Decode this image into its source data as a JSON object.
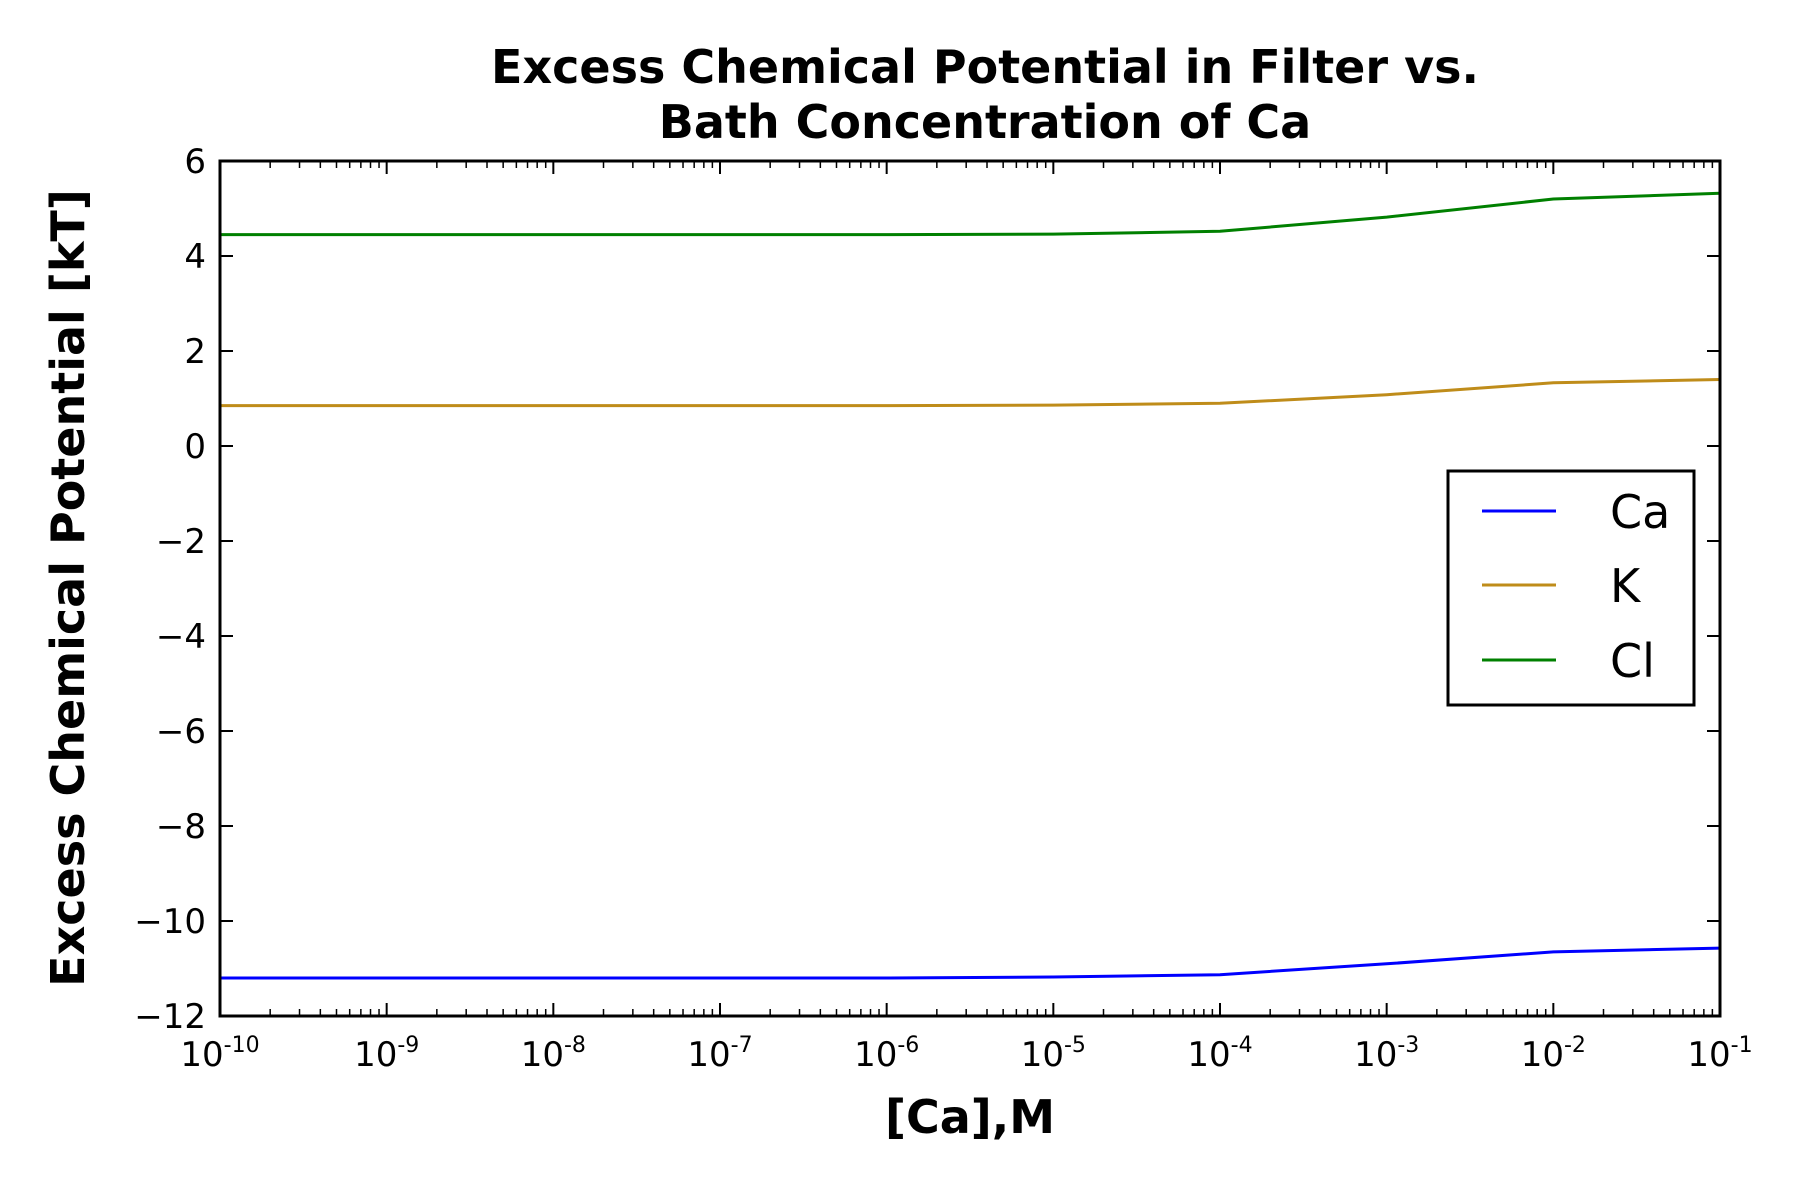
{
  "chart_data": {
    "type": "line",
    "title": "Excess Chemical Potential in Filter vs.\nBath Concentration of Ca",
    "title_lines": [
      "Excess Chemical Potential in Filter vs.",
      "Bath Concentration of Ca"
    ],
    "xlabel": "[Ca],M",
    "ylabel": "Excess Chemical Potential [kT]",
    "x_scale": "log",
    "xlim": [
      1e-10,
      0.1
    ],
    "ylim": [
      -12,
      6
    ],
    "x_ticks": [
      {
        "base": "10",
        "exp": "-10"
      },
      {
        "base": "10",
        "exp": "-9"
      },
      {
        "base": "10",
        "exp": "-8"
      },
      {
        "base": "10",
        "exp": "-7"
      },
      {
        "base": "10",
        "exp": "-6"
      },
      {
        "base": "10",
        "exp": "-5"
      },
      {
        "base": "10",
        "exp": "-4"
      },
      {
        "base": "10",
        "exp": "-3"
      },
      {
        "base": "10",
        "exp": "-2"
      },
      {
        "base": "10",
        "exp": "-1"
      }
    ],
    "y_ticks": [
      6,
      4,
      2,
      0,
      -2,
      -4,
      -6,
      -8,
      -10,
      -12
    ],
    "y_tick_labels": [
      "6",
      "4",
      "2",
      "0",
      "−2",
      "−4",
      "−6",
      "−8",
      "−10",
      "−12"
    ],
    "x": [
      1e-10,
      1e-09,
      1e-08,
      1e-07,
      1e-06,
      1e-05,
      0.0001,
      0.001,
      0.01,
      0.1
    ],
    "series": [
      {
        "name": "Ca",
        "color": "#0000ff",
        "values": [
          -11.2,
          -11.2,
          -11.2,
          -11.2,
          -11.2,
          -11.18,
          -11.13,
          -10.9,
          -10.65,
          -10.57
        ]
      },
      {
        "name": "K",
        "color": "#bf8c1a",
        "values": [
          0.85,
          0.85,
          0.85,
          0.85,
          0.85,
          0.86,
          0.9,
          1.08,
          1.33,
          1.4
        ]
      },
      {
        "name": "Cl",
        "color": "#008000",
        "values": [
          4.45,
          4.45,
          4.45,
          4.45,
          4.45,
          4.46,
          4.52,
          4.82,
          5.2,
          5.32
        ]
      }
    ],
    "legend_position": "center-right",
    "grid": false
  }
}
